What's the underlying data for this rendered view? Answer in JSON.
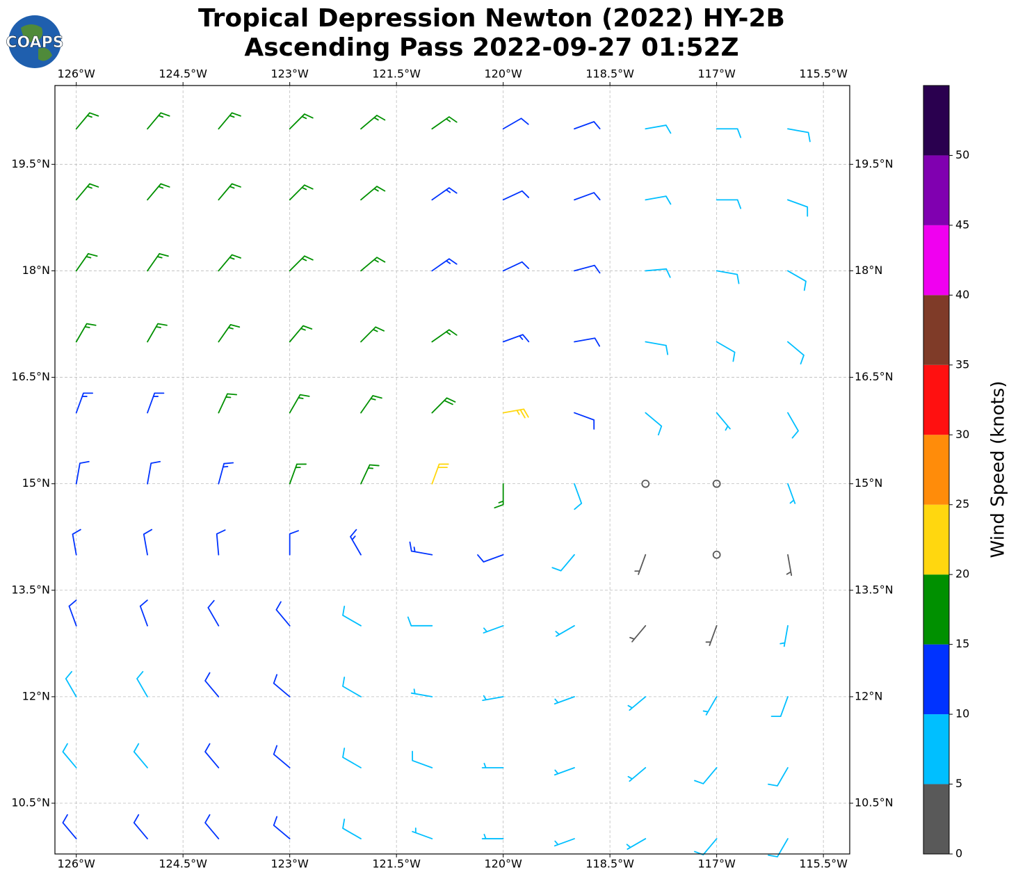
{
  "logo": "COAPS",
  "chart_data": {
    "type": "barbs",
    "title": [
      "Tropical Depression Newton (2022) HY-2B",
      "Ascending Pass 2022-09-27 01:52Z"
    ],
    "xlim": [
      -126.3,
      -115.13
    ],
    "ylim": [
      9.785,
      20.61
    ],
    "xticks": [
      {
        "value": -126,
        "label": "126°W"
      },
      {
        "value": -124.5,
        "label": "124.5°W"
      },
      {
        "value": -123,
        "label": "123°W"
      },
      {
        "value": -121.5,
        "label": "121.5°W"
      },
      {
        "value": -120,
        "label": "120°W"
      },
      {
        "value": -118.5,
        "label": "118.5°W"
      },
      {
        "value": -117,
        "label": "117°W"
      },
      {
        "value": -115.5,
        "label": "115.5°W"
      }
    ],
    "yticks": [
      {
        "value": 19.5,
        "label": "19.5°N"
      },
      {
        "value": 18,
        "label": "18°N"
      },
      {
        "value": 16.5,
        "label": "16.5°N"
      },
      {
        "value": 15,
        "label": "15°N"
      },
      {
        "value": 13.5,
        "label": "13.5°N"
      },
      {
        "value": 12,
        "label": "12°N"
      },
      {
        "value": 10.5,
        "label": "10.5°N"
      }
    ],
    "grid": true,
    "colorbar": {
      "label": "Wind Speed (knots)",
      "lim": [
        0,
        55
      ],
      "bounds": [
        0,
        5,
        10,
        15,
        20,
        25,
        30,
        35,
        40,
        45,
        50,
        55
      ],
      "colors": [
        "#595959",
        "#00bfff",
        "#0033ff",
        "#009000",
        "#ffd70f",
        "#ff8c0a",
        "#ff1010",
        "#7f3b28",
        "#f000f0",
        "#8000b0",
        "#2a004f"
      ],
      "ticks": [
        0,
        5,
        10,
        15,
        20,
        25,
        30,
        35,
        40,
        45,
        50
      ]
    },
    "barbs": {
      "lons": [
        -126,
        -125,
        -124,
        -123,
        -122,
        -121,
        -120,
        -119,
        -118,
        -117,
        -116
      ],
      "lats": [
        20,
        19,
        18,
        17,
        16,
        15,
        14,
        13,
        12,
        11,
        10
      ],
      "speed": [
        [
          17,
          17,
          17,
          16,
          16,
          16,
          12,
          12,
          8,
          8,
          8
        ],
        [
          17,
          17,
          17,
          16,
          16,
          14,
          12,
          11,
          8,
          8,
          8
        ],
        [
          17,
          17,
          17,
          17,
          16,
          14,
          12,
          11,
          9,
          8,
          8
        ],
        [
          16,
          17,
          17,
          17,
          17,
          16,
          14,
          11,
          9,
          8,
          8
        ],
        [
          13,
          13,
          17,
          17,
          17,
          18,
          24,
          12,
          8,
          7,
          8
        ],
        [
          12,
          12,
          13,
          16,
          17,
          20,
          17,
          9,
          2,
          2,
          7
        ],
        [
          12,
          12,
          12,
          12,
          13,
          13,
          12,
          8,
          3,
          2,
          3
        ],
        [
          11,
          11,
          10,
          10,
          9,
          8,
          7,
          6,
          4,
          3,
          7
        ],
        [
          9,
          9,
          10,
          10,
          8,
          7,
          7,
          7,
          7,
          7,
          8
        ],
        [
          8,
          9,
          10,
          11,
          9,
          8,
          7,
          7,
          7,
          8,
          8
        ],
        [
          11,
          12,
          11,
          11,
          8,
          7,
          7,
          7,
          7,
          8,
          8
        ]
      ],
      "dir": [
        [
          40,
          40,
          40,
          45,
          50,
          55,
          60,
          70,
          80,
          90,
          100
        ],
        [
          40,
          40,
          40,
          45,
          50,
          55,
          65,
          70,
          80,
          90,
          110
        ],
        [
          35,
          35,
          40,
          45,
          50,
          55,
          65,
          75,
          85,
          100,
          120
        ],
        [
          30,
          30,
          35,
          40,
          45,
          55,
          70,
          80,
          100,
          120,
          130
        ],
        [
          20,
          20,
          25,
          30,
          35,
          45,
          80,
          110,
          130,
          140,
          150
        ],
        [
          10,
          10,
          15,
          20,
          25,
          20,
          180,
          160,
          170,
          170,
          160
        ],
        [
          350,
          350,
          355,
          0,
          330,
          280,
          250,
          220,
          200,
          180,
          170
        ],
        [
          340,
          340,
          330,
          320,
          300,
          270,
          250,
          240,
          220,
          200,
          190
        ],
        [
          330,
          330,
          320,
          310,
          300,
          280,
          260,
          250,
          230,
          210,
          200
        ],
        [
          320,
          320,
          320,
          310,
          300,
          290,
          270,
          250,
          230,
          220,
          210
        ],
        [
          320,
          320,
          320,
          310,
          300,
          290,
          270,
          250,
          240,
          220,
          210
        ]
      ]
    }
  }
}
